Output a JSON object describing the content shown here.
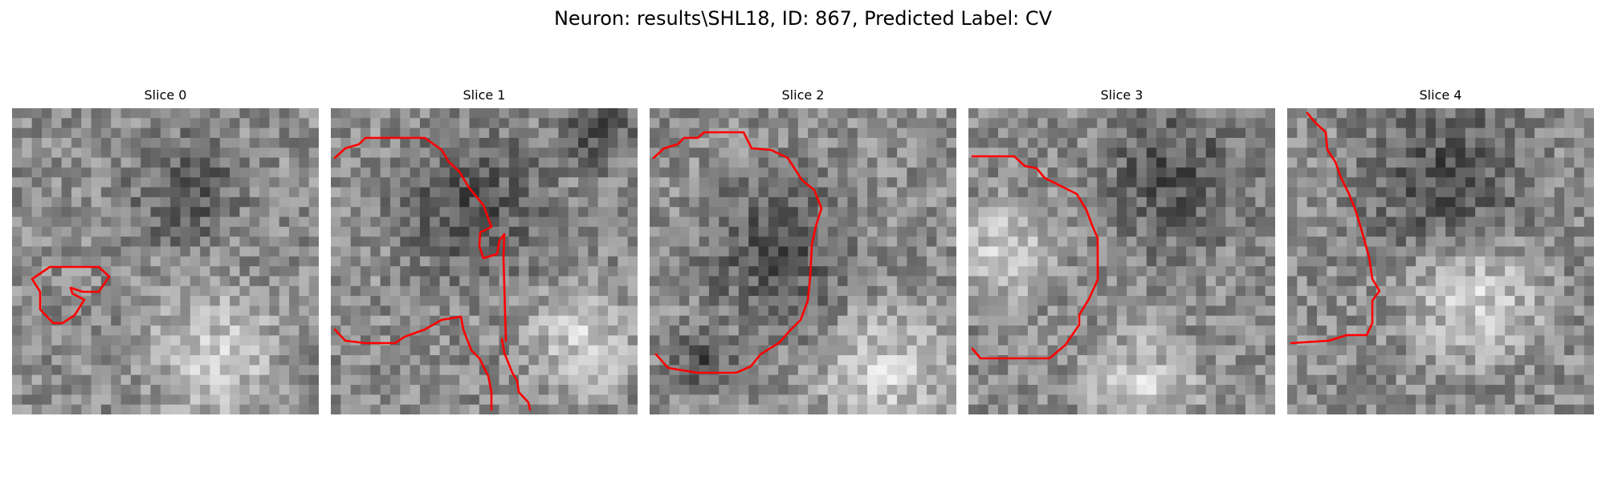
{
  "figure": {
    "title": "Neuron: results\\SHL18, ID: 867, Predicted Label: CV"
  },
  "colors": {
    "outline": "#ff0000"
  },
  "panels": [
    {
      "title": "Slice 0",
      "seed": 11,
      "dark_centers": [
        [
          0.55,
          0.25,
          0.25
        ]
      ],
      "bright_centers": [
        [
          0.65,
          0.8,
          0.3
        ]
      ]
    },
    {
      "title": "Slice 1",
      "seed": 23,
      "dark_centers": [
        [
          0.45,
          0.3,
          0.35
        ],
        [
          0.85,
          0.05,
          0.2
        ]
      ],
      "bright_centers": [
        [
          0.8,
          0.75,
          0.25
        ]
      ]
    },
    {
      "title": "Slice 2",
      "seed": 37,
      "dark_centers": [
        [
          0.4,
          0.45,
          0.35
        ],
        [
          0.15,
          0.8,
          0.15
        ]
      ],
      "bright_centers": [
        [
          0.75,
          0.85,
          0.3
        ]
      ]
    },
    {
      "title": "Slice 3",
      "seed": 51,
      "dark_centers": [
        [
          0.65,
          0.2,
          0.35
        ]
      ],
      "bright_centers": [
        [
          0.1,
          0.45,
          0.22
        ],
        [
          0.55,
          0.9,
          0.25
        ]
      ]
    },
    {
      "title": "Slice 4",
      "seed": 67,
      "dark_centers": [
        [
          0.5,
          0.2,
          0.4
        ]
      ],
      "bright_centers": [
        [
          0.6,
          0.6,
          0.3
        ]
      ]
    }
  ]
}
